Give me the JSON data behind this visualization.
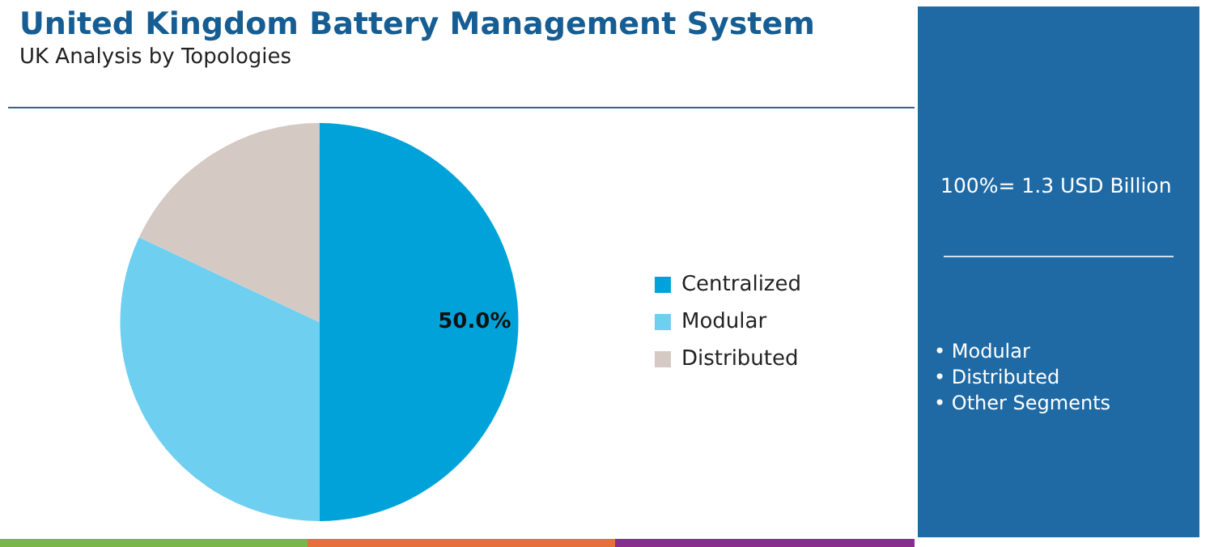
{
  "chart_data": {
    "type": "pie",
    "title": "United Kingdom Battery Management System",
    "subtitle": "UK Analysis by Topologies",
    "categories": [
      "Centralized",
      "Modular",
      "Distributed"
    ],
    "values": [
      50,
      32,
      18
    ],
    "colors": [
      "#00a3d9",
      "#6ecff0",
      "#d5c9c4"
    ],
    "value_labels": [
      "50.0%",
      null,
      null
    ],
    "legend": "right",
    "annotations": [
      "100%= 1.3 USD Billion",
      "• Modular",
      "• Distributed",
      "• Other Segments"
    ]
  }
}
